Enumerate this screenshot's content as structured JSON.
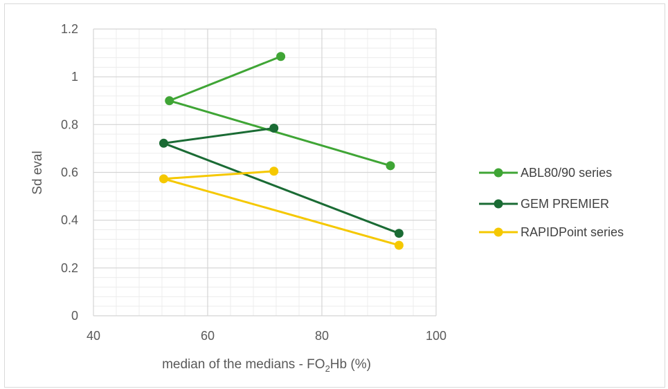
{
  "chart_data": {
    "type": "scatter",
    "title": "",
    "xlabel": {
      "prefix": "median of the medians - FO",
      "subscript": "2",
      "suffix": "Hb (%)"
    },
    "ylabel": "Sd eval",
    "xlim": [
      40,
      100
    ],
    "ylim": [
      0,
      1.2
    ],
    "x_ticks": [
      40,
      60,
      80,
      100
    ],
    "y_ticks": [
      "0",
      "0.2",
      "0.4",
      "0.6",
      "0.8",
      "1",
      "1.2"
    ],
    "x_minor_step": 4,
    "y_minor_step": 0.04,
    "grid": true,
    "legend_position": "right",
    "series": [
      {
        "name": "ABL80/90 series",
        "color": "#3fa535",
        "points": [
          {
            "x": 72.8,
            "y": 1.085
          },
          {
            "x": 53.3,
            "y": 0.9
          },
          {
            "x": 92.0,
            "y": 0.628
          }
        ]
      },
      {
        "name": "GEM PREMIER",
        "color": "#1a6b34",
        "points": [
          {
            "x": 71.6,
            "y": 0.785
          },
          {
            "x": 52.3,
            "y": 0.722
          },
          {
            "x": 93.5,
            "y": 0.345
          }
        ]
      },
      {
        "name": "RAPIDPoint series",
        "color": "#f5c800",
        "points": [
          {
            "x": 71.6,
            "y": 0.605
          },
          {
            "x": 52.3,
            "y": 0.573
          },
          {
            "x": 93.5,
            "y": 0.295
          }
        ]
      }
    ]
  }
}
